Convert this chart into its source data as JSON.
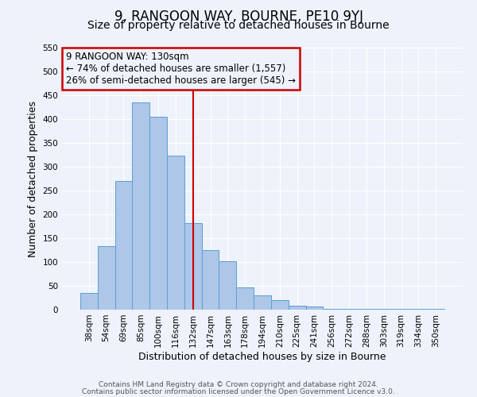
{
  "title": "9, RANGOON WAY, BOURNE, PE10 9YJ",
  "subtitle": "Size of property relative to detached houses in Bourne",
  "xlabel": "Distribution of detached houses by size in Bourne",
  "ylabel": "Number of detached properties",
  "bar_labels": [
    "38sqm",
    "54sqm",
    "69sqm",
    "85sqm",
    "100sqm",
    "116sqm",
    "132sqm",
    "147sqm",
    "163sqm",
    "178sqm",
    "194sqm",
    "210sqm",
    "225sqm",
    "241sqm",
    "256sqm",
    "272sqm",
    "288sqm",
    "303sqm",
    "319sqm",
    "334sqm",
    "350sqm"
  ],
  "bar_values": [
    35,
    133,
    270,
    435,
    405,
    323,
    182,
    125,
    101,
    46,
    30,
    20,
    8,
    7,
    2,
    1,
    1,
    1,
    1,
    1,
    1
  ],
  "bar_color": "#aec6e8",
  "bar_edgecolor": "#5a9fd4",
  "vline_x": 6,
  "vline_color": "#cc0000",
  "annotation_title": "9 RANGOON WAY: 130sqm",
  "annotation_line1": "← 74% of detached houses are smaller (1,557)",
  "annotation_line2": "26% of semi-detached houses are larger (545) →",
  "annotation_box_color": "#cc0000",
  "ylim": [
    0,
    550
  ],
  "footer1": "Contains HM Land Registry data © Crown copyright and database right 2024.",
  "footer2": "Contains public sector information licensed under the Open Government Licence v3.0.",
  "bg_color": "#eef2fb",
  "grid_color": "#ffffff",
  "title_fontsize": 12,
  "subtitle_fontsize": 10,
  "label_fontsize": 9,
  "tick_fontsize": 7.5,
  "footer_fontsize": 6.5,
  "ann_fontsize": 8.5
}
